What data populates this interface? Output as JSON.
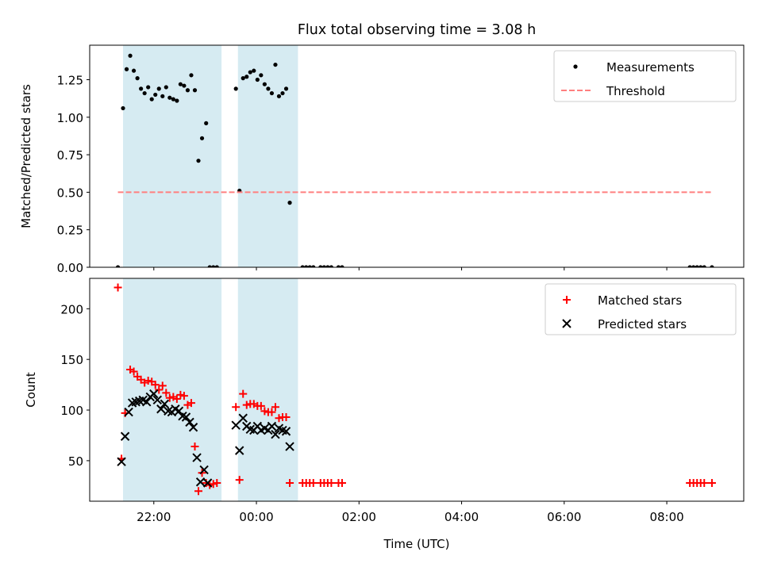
{
  "title": "Flux total observing time = 3.08 h",
  "chart_data": [
    {
      "type": "scatter",
      "title": "Flux total observing time = 3.08 h",
      "xlabel": "",
      "ylabel": "Matched/Predicted stars",
      "x_unit": "hours since 00:00 UTC of the second night day",
      "xlim": [
        -3.25,
        9.5
      ],
      "ylim": [
        0,
        1.48
      ],
      "yticks": [
        0.0,
        0.25,
        0.5,
        0.75,
        1.0,
        1.25
      ],
      "ytick_labels": [
        "0.00",
        "0.25",
        "0.50",
        "0.75",
        "1.00",
        "1.25"
      ],
      "legend_position": "upper right",
      "shaded_intervals": [
        [
          -2.6,
          -0.68
        ],
        [
          -0.36,
          0.81
        ]
      ],
      "shade_color": "#add8e6",
      "series": [
        {
          "name": "Measurements",
          "marker": "dot",
          "color": "#000000",
          "points": [
            [
              -2.7,
              0.0
            ],
            [
              -2.6,
              1.06
            ],
            [
              -2.53,
              1.32
            ],
            [
              -2.46,
              1.41
            ],
            [
              -2.39,
              1.31
            ],
            [
              -2.32,
              1.26
            ],
            [
              -2.25,
              1.19
            ],
            [
              -2.18,
              1.16
            ],
            [
              -2.11,
              1.2
            ],
            [
              -2.04,
              1.12
            ],
            [
              -1.97,
              1.15
            ],
            [
              -1.9,
              1.19
            ],
            [
              -1.83,
              1.14
            ],
            [
              -1.76,
              1.2
            ],
            [
              -1.69,
              1.13
            ],
            [
              -1.62,
              1.12
            ],
            [
              -1.55,
              1.11
            ],
            [
              -1.48,
              1.22
            ],
            [
              -1.41,
              1.21
            ],
            [
              -1.34,
              1.18
            ],
            [
              -1.27,
              1.28
            ],
            [
              -1.2,
              1.18
            ],
            [
              -1.13,
              0.71
            ],
            [
              -1.06,
              0.86
            ],
            [
              -0.98,
              0.96
            ],
            [
              -0.91,
              0.0
            ],
            [
              -0.84,
              0.0
            ],
            [
              -0.77,
              0.0
            ],
            [
              -0.4,
              1.19
            ],
            [
              -0.33,
              0.51
            ],
            [
              -0.26,
              1.26
            ],
            [
              -0.19,
              1.27
            ],
            [
              -0.12,
              1.3
            ],
            [
              -0.05,
              1.31
            ],
            [
              0.02,
              1.25
            ],
            [
              0.09,
              1.28
            ],
            [
              0.16,
              1.22
            ],
            [
              0.23,
              1.19
            ],
            [
              0.3,
              1.16
            ],
            [
              0.37,
              1.35
            ],
            [
              0.44,
              1.14
            ],
            [
              0.51,
              1.16
            ],
            [
              0.58,
              1.19
            ],
            [
              0.65,
              0.43
            ],
            [
              0.9,
              0.0
            ],
            [
              0.97,
              0.0
            ],
            [
              1.04,
              0.0
            ],
            [
              1.11,
              0.0
            ],
            [
              1.25,
              0.0
            ],
            [
              1.32,
              0.0
            ],
            [
              1.39,
              0.0
            ],
            [
              1.46,
              0.0
            ],
            [
              1.6,
              0.0
            ],
            [
              1.67,
              0.0
            ],
            [
              8.45,
              0.0
            ],
            [
              8.52,
              0.0
            ],
            [
              8.59,
              0.0
            ],
            [
              8.66,
              0.0
            ],
            [
              8.73,
              0.0
            ],
            [
              8.88,
              0.0
            ]
          ]
        },
        {
          "name": "Threshold",
          "marker": "dashed-line",
          "color": "#ff7f7f",
          "points": [
            [
              -2.7,
              0.5
            ],
            [
              8.88,
              0.5
            ]
          ]
        }
      ]
    },
    {
      "type": "scatter",
      "xlabel": "Time (UTC)",
      "ylabel": "Count",
      "x_unit": "hours since 00:00 UTC of the second night day",
      "xlim": [
        -3.25,
        9.5
      ],
      "ylim": [
        10,
        230
      ],
      "yticks": [
        50,
        100,
        150,
        200
      ],
      "ytick_labels": [
        "50",
        "100",
        "150",
        "200"
      ],
      "xticks": [
        -2,
        0,
        2,
        4,
        6,
        8
      ],
      "xtick_labels": [
        "22:00",
        "00:00",
        "02:00",
        "04:00",
        "06:00",
        "08:00"
      ],
      "legend_position": "upper right",
      "shaded_intervals": [
        [
          -2.6,
          -0.68
        ],
        [
          -0.36,
          0.81
        ]
      ],
      "shade_color": "#add8e6",
      "series": [
        {
          "name": "Matched stars",
          "marker": "plus",
          "color": "#ff0000",
          "points": [
            [
              -2.7,
              221
            ],
            [
              -2.63,
              52
            ],
            [
              -2.56,
              97
            ],
            [
              -2.46,
              140
            ],
            [
              -2.39,
              138
            ],
            [
              -2.32,
              133
            ],
            [
              -2.25,
              130
            ],
            [
              -2.18,
              127
            ],
            [
              -2.11,
              129
            ],
            [
              -2.04,
              128
            ],
            [
              -1.97,
              125
            ],
            [
              -1.9,
              120
            ],
            [
              -1.83,
              124
            ],
            [
              -1.76,
              117
            ],
            [
              -1.69,
              112
            ],
            [
              -1.62,
              113
            ],
            [
              -1.55,
              111
            ],
            [
              -1.48,
              115
            ],
            [
              -1.41,
              114
            ],
            [
              -1.34,
              105
            ],
            [
              -1.27,
              107
            ],
            [
              -1.2,
              64
            ],
            [
              -1.13,
              20
            ],
            [
              -1.06,
              38
            ],
            [
              -0.98,
              28
            ],
            [
              -0.91,
              26
            ],
            [
              -0.84,
              27
            ],
            [
              -0.77,
              28
            ],
            [
              -0.4,
              103
            ],
            [
              -0.33,
              31
            ],
            [
              -0.26,
              116
            ],
            [
              -0.19,
              105
            ],
            [
              -0.12,
              106
            ],
            [
              -0.05,
              106
            ],
            [
              0.02,
              104
            ],
            [
              0.09,
              104
            ],
            [
              0.16,
              99
            ],
            [
              0.23,
              98
            ],
            [
              0.3,
              98
            ],
            [
              0.37,
              103
            ],
            [
              0.44,
              92
            ],
            [
              0.51,
              93
            ],
            [
              0.58,
              93
            ],
            [
              0.65,
              28
            ],
            [
              0.9,
              28
            ],
            [
              0.97,
              28
            ],
            [
              1.04,
              28
            ],
            [
              1.11,
              28
            ],
            [
              1.25,
              28
            ],
            [
              1.32,
              28
            ],
            [
              1.39,
              28
            ],
            [
              1.46,
              28
            ],
            [
              1.6,
              28
            ],
            [
              1.67,
              28
            ],
            [
              8.45,
              28
            ],
            [
              8.52,
              28
            ],
            [
              8.59,
              28
            ],
            [
              8.66,
              28
            ],
            [
              8.73,
              28
            ],
            [
              8.88,
              28
            ]
          ]
        },
        {
          "name": "Predicted stars",
          "marker": "x",
          "color": "#000000",
          "points": [
            [
              -2.63,
              49
            ],
            [
              -2.56,
              74
            ],
            [
              -2.49,
              98
            ],
            [
              -2.42,
              107
            ],
            [
              -2.35,
              108
            ],
            [
              -2.28,
              109
            ],
            [
              -2.21,
              110
            ],
            [
              -2.14,
              108
            ],
            [
              -2.07,
              113
            ],
            [
              -2.0,
              116
            ],
            [
              -1.93,
              110
            ],
            [
              -1.86,
              101
            ],
            [
              -1.79,
              106
            ],
            [
              -1.72,
              99
            ],
            [
              -1.65,
              98
            ],
            [
              -1.58,
              101
            ],
            [
              -1.51,
              99
            ],
            [
              -1.44,
              94
            ],
            [
              -1.37,
              93
            ],
            [
              -1.3,
              88
            ],
            [
              -1.23,
              83
            ],
            [
              -1.16,
              53
            ],
            [
              -1.09,
              29
            ],
            [
              -1.02,
              41
            ],
            [
              -0.95,
              28
            ],
            [
              -0.4,
              85
            ],
            [
              -0.33,
              60
            ],
            [
              -0.26,
              92
            ],
            [
              -0.19,
              84
            ],
            [
              -0.12,
              81
            ],
            [
              -0.05,
              80
            ],
            [
              0.02,
              84
            ],
            [
              0.09,
              80
            ],
            [
              0.16,
              82
            ],
            [
              0.23,
              80
            ],
            [
              0.3,
              84
            ],
            [
              0.37,
              76
            ],
            [
              0.44,
              82
            ],
            [
              0.51,
              80
            ],
            [
              0.58,
              79
            ],
            [
              0.65,
              64
            ]
          ]
        }
      ]
    }
  ]
}
